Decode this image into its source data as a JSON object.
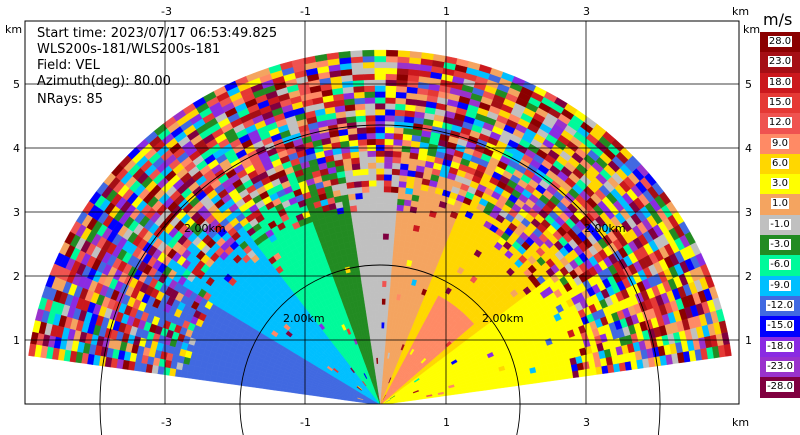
{
  "info": {
    "start_time": "Start time: 2023/07/17 06:53:49.825",
    "instrument": "WLS200s-181/WLS200s-181",
    "field": "Field: VEL",
    "azimuth": "Azimuth(deg): 80.00",
    "nrays": "NRays: 85"
  },
  "axes": {
    "x_ticks": [
      "-3",
      "-1",
      "1",
      "3"
    ],
    "y_ticks": [
      "5",
      "4",
      "3",
      "2",
      "1"
    ],
    "unit": "km",
    "range_ring_label": "2.00km"
  },
  "colorbar": {
    "unit": "m/s",
    "labels": [
      "28.0",
      "23.0",
      "18.0",
      "15.0",
      "12.0",
      "9.0",
      "6.0",
      "3.0",
      "1.0",
      "-1.0",
      "-3.0",
      "-6.0",
      "-9.0",
      "-12.0",
      "-15.0",
      "-18.0",
      "-23.0",
      "-28.0"
    ],
    "colors": [
      "#8b0000",
      "#a50f15",
      "#cb181d",
      "#e53935",
      "#ef5350",
      "#ff8a65",
      "#ffd700",
      "#ffff00",
      "#f4a460",
      "#c0c0c0",
      "#228b22",
      "#00fa9a",
      "#00bfff",
      "#4169e1",
      "#0000ff",
      "#8a2be2",
      "#9932cc",
      "#800040"
    ]
  }
}
